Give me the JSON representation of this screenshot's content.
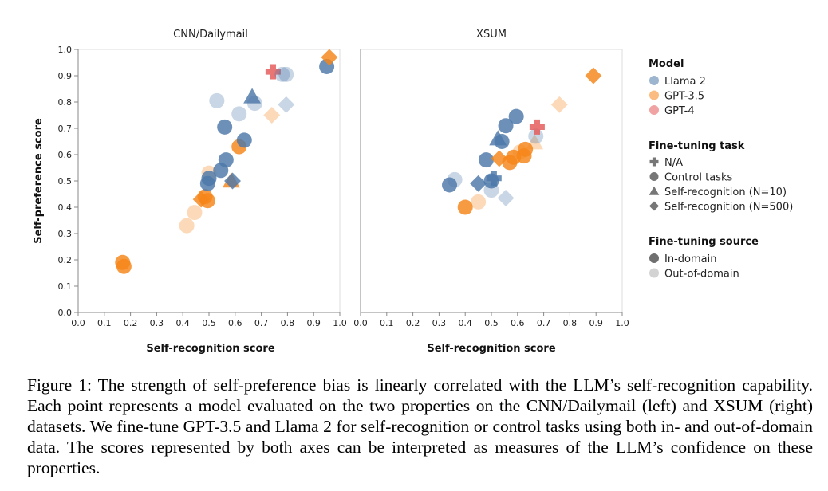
{
  "chart_data": [
    {
      "type": "scatter",
      "title": "CNN/Dailymail",
      "xlabel": "Self-recognition score",
      "ylabel": "Self-preference score",
      "xlim": [
        0,
        1
      ],
      "ylim": [
        0,
        1
      ],
      "x_ticks": [
        "0.0",
        "0.1",
        "0.2",
        "0.3",
        "0.4",
        "0.5",
        "0.6",
        "0.7",
        "0.8",
        "0.9",
        "1.0"
      ],
      "y_ticks": [
        "0.0",
        "0.1",
        "0.2",
        "0.3",
        "0.4",
        "0.5",
        "0.6",
        "0.7",
        "0.8",
        "0.9",
        "1.0"
      ],
      "points": [
        {
          "x": 0.17,
          "y": 0.19,
          "model": "GPT-3.5",
          "task": "Control tasks",
          "source": "In-domain"
        },
        {
          "x": 0.175,
          "y": 0.175,
          "model": "GPT-3.5",
          "task": "Control tasks",
          "source": "In-domain"
        },
        {
          "x": 0.415,
          "y": 0.33,
          "model": "GPT-3.5",
          "task": "Control tasks",
          "source": "Out-of-domain"
        },
        {
          "x": 0.445,
          "y": 0.38,
          "model": "GPT-3.5",
          "task": "Control tasks",
          "source": "Out-of-domain"
        },
        {
          "x": 0.47,
          "y": 0.43,
          "model": "GPT-3.5",
          "task": "Self-recognition (N=500)",
          "source": "In-domain"
        },
        {
          "x": 0.485,
          "y": 0.44,
          "model": "GPT-3.5",
          "task": "Control tasks",
          "source": "In-domain"
        },
        {
          "x": 0.495,
          "y": 0.425,
          "model": "GPT-3.5",
          "task": "Control tasks",
          "source": "In-domain"
        },
        {
          "x": 0.5,
          "y": 0.53,
          "model": "GPT-3.5",
          "task": "Control tasks",
          "source": "Out-of-domain"
        },
        {
          "x": 0.495,
          "y": 0.49,
          "model": "Llama 2",
          "task": "Control tasks",
          "source": "In-domain"
        },
        {
          "x": 0.5,
          "y": 0.51,
          "model": "Llama 2",
          "task": "Control tasks",
          "source": "In-domain"
        },
        {
          "x": 0.545,
          "y": 0.54,
          "model": "Llama 2",
          "task": "Control tasks",
          "source": "In-domain"
        },
        {
          "x": 0.565,
          "y": 0.58,
          "model": "Llama 2",
          "task": "Control tasks",
          "source": "In-domain"
        },
        {
          "x": 0.56,
          "y": 0.705,
          "model": "Llama 2",
          "task": "Control tasks",
          "source": "In-domain"
        },
        {
          "x": 0.585,
          "y": 0.5,
          "model": "GPT-3.5",
          "task": "Self-recognition (N=10)",
          "source": "In-domain"
        },
        {
          "x": 0.59,
          "y": 0.5,
          "model": "Llama 2",
          "task": "Self-recognition (N=500)",
          "source": "In-domain"
        },
        {
          "x": 0.615,
          "y": 0.63,
          "model": "GPT-3.5",
          "task": "Control tasks",
          "source": "In-domain"
        },
        {
          "x": 0.635,
          "y": 0.655,
          "model": "Llama 2",
          "task": "Control tasks",
          "source": "In-domain"
        },
        {
          "x": 0.53,
          "y": 0.805,
          "model": "Llama 2",
          "task": "Control tasks",
          "source": "Out-of-domain"
        },
        {
          "x": 0.615,
          "y": 0.755,
          "model": "Llama 2",
          "task": "Control tasks",
          "source": "Out-of-domain"
        },
        {
          "x": 0.665,
          "y": 0.82,
          "model": "Llama 2",
          "task": "Self-recognition (N=10)",
          "source": "In-domain"
        },
        {
          "x": 0.675,
          "y": 0.795,
          "model": "Llama 2",
          "task": "Control tasks",
          "source": "Out-of-domain"
        },
        {
          "x": 0.74,
          "y": 0.75,
          "model": "GPT-3.5",
          "task": "Self-recognition (N=500)",
          "source": "Out-of-domain"
        },
        {
          "x": 0.745,
          "y": 0.915,
          "model": "GPT-4",
          "task": "N/A",
          "source": "In-domain"
        },
        {
          "x": 0.78,
          "y": 0.905,
          "model": "Llama 2",
          "task": "Control tasks",
          "source": "Out-of-domain"
        },
        {
          "x": 0.795,
          "y": 0.905,
          "model": "Llama 2",
          "task": "Control tasks",
          "source": "Out-of-domain"
        },
        {
          "x": 0.795,
          "y": 0.79,
          "model": "Llama 2",
          "task": "Self-recognition (N=500)",
          "source": "Out-of-domain"
        },
        {
          "x": 0.95,
          "y": 0.935,
          "model": "Llama 2",
          "task": "Control tasks",
          "source": "In-domain"
        },
        {
          "x": 0.96,
          "y": 0.97,
          "model": "GPT-3.5",
          "task": "Self-recognition (N=500)",
          "source": "In-domain"
        }
      ]
    },
    {
      "type": "scatter",
      "title": "XSUM",
      "xlabel": "Self-recognition score",
      "ylabel": "",
      "xlim": [
        0,
        1
      ],
      "ylim": [
        0,
        1
      ],
      "x_ticks": [
        "0.0",
        "0.1",
        "0.2",
        "0.3",
        "0.4",
        "0.5",
        "0.6",
        "0.7",
        "0.8",
        "0.9",
        "1.0"
      ],
      "points": [
        {
          "x": 0.34,
          "y": 0.485,
          "model": "Llama 2",
          "task": "Control tasks",
          "source": "In-domain"
        },
        {
          "x": 0.36,
          "y": 0.505,
          "model": "Llama 2",
          "task": "Control tasks",
          "source": "Out-of-domain"
        },
        {
          "x": 0.4,
          "y": 0.4,
          "model": "GPT-3.5",
          "task": "Control tasks",
          "source": "In-domain"
        },
        {
          "x": 0.45,
          "y": 0.42,
          "model": "GPT-3.5",
          "task": "Control tasks",
          "source": "Out-of-domain"
        },
        {
          "x": 0.45,
          "y": 0.49,
          "model": "Llama 2",
          "task": "Self-recognition (N=500)",
          "source": "In-domain"
        },
        {
          "x": 0.48,
          "y": 0.58,
          "model": "Llama 2",
          "task": "Control tasks",
          "source": "In-domain"
        },
        {
          "x": 0.5,
          "y": 0.465,
          "model": "Llama 2",
          "task": "Control tasks",
          "source": "Out-of-domain"
        },
        {
          "x": 0.5,
          "y": 0.5,
          "model": "Llama 2",
          "task": "Control tasks",
          "source": "In-domain"
        },
        {
          "x": 0.51,
          "y": 0.51,
          "model": "Llama 2",
          "task": "N/A",
          "source": "In-domain"
        },
        {
          "x": 0.525,
          "y": 0.66,
          "model": "Llama 2",
          "task": "Self-recognition (N=10)",
          "source": "In-domain"
        },
        {
          "x": 0.53,
          "y": 0.585,
          "model": "GPT-3.5",
          "task": "Self-recognition (N=500)",
          "source": "In-domain"
        },
        {
          "x": 0.54,
          "y": 0.65,
          "model": "Llama 2",
          "task": "Control tasks",
          "source": "In-domain"
        },
        {
          "x": 0.555,
          "y": 0.435,
          "model": "Llama 2",
          "task": "Self-recognition (N=500)",
          "source": "Out-of-domain"
        },
        {
          "x": 0.555,
          "y": 0.71,
          "model": "Llama 2",
          "task": "Control tasks",
          "source": "In-domain"
        },
        {
          "x": 0.57,
          "y": 0.57,
          "model": "GPT-3.5",
          "task": "Control tasks",
          "source": "In-domain"
        },
        {
          "x": 0.585,
          "y": 0.59,
          "model": "GPT-3.5",
          "task": "Control tasks",
          "source": "In-domain"
        },
        {
          "x": 0.595,
          "y": 0.745,
          "model": "Llama 2",
          "task": "Control tasks",
          "source": "In-domain"
        },
        {
          "x": 0.61,
          "y": 0.61,
          "model": "GPT-3.5",
          "task": "Control tasks",
          "source": "Out-of-domain"
        },
        {
          "x": 0.625,
          "y": 0.595,
          "model": "GPT-3.5",
          "task": "Control tasks",
          "source": "In-domain"
        },
        {
          "x": 0.63,
          "y": 0.62,
          "model": "GPT-3.5",
          "task": "Control tasks",
          "source": "In-domain"
        },
        {
          "x": 0.665,
          "y": 0.645,
          "model": "GPT-3.5",
          "task": "Self-recognition (N=10)",
          "source": "Out-of-domain"
        },
        {
          "x": 0.67,
          "y": 0.67,
          "model": "Llama 2",
          "task": "Control tasks",
          "source": "Out-of-domain"
        },
        {
          "x": 0.675,
          "y": 0.705,
          "model": "GPT-4",
          "task": "N/A",
          "source": "In-domain"
        },
        {
          "x": 0.76,
          "y": 0.79,
          "model": "GPT-3.5",
          "task": "Self-recognition (N=500)",
          "source": "Out-of-domain"
        },
        {
          "x": 0.89,
          "y": 0.9,
          "model": "GPT-3.5",
          "task": "Self-recognition (N=500)",
          "source": "In-domain"
        }
      ]
    }
  ],
  "legend": {
    "model": {
      "title": "Model",
      "items": [
        {
          "label": "Llama 2",
          "color": "#4c78a8"
        },
        {
          "label": "GPT-3.5",
          "color": "#f58518"
        },
        {
          "label": "GPT-4",
          "color": "#e45756"
        }
      ]
    },
    "task": {
      "title": "Fine-tuning task",
      "items": [
        {
          "label": "N/A",
          "shape": "cross"
        },
        {
          "label": "Control tasks",
          "shape": "circle"
        },
        {
          "label": "Self-recognition (N=10)",
          "shape": "triangle"
        },
        {
          "label": "Self-recognition (N=500)",
          "shape": "diamond"
        }
      ]
    },
    "source": {
      "title": "Fine-tuning source",
      "items": [
        {
          "label": "In-domain",
          "shade": "#6f6f6f"
        },
        {
          "label": "Out-of-domain",
          "shade": "#d3d3d3"
        }
      ]
    }
  },
  "caption": "Figure 1: The strength of self-preference bias is linearly correlated with the LLM’s self-recognition capability. Each point represents a model evaluated on the two properties on the CNN/Dailymail (left) and XSUM (right) datasets. We fine-tune GPT-3.5 and Llama 2 for self-recognition or control tasks using both in- and out-of-domain data. The scores represented by both axes can be interpreted as measures of the LLM’s confidence on these properties."
}
